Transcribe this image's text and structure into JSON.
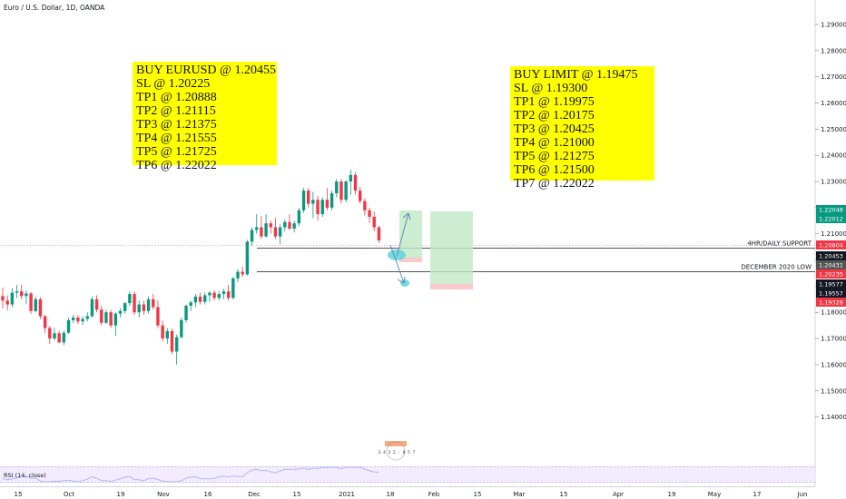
{
  "chart_data": {
    "type": "candlestick",
    "title": "Euro / U.S. Dollar, 1D, OANDA",
    "y_ticks": [
      "1.29000",
      "1.28000",
      "1.27000",
      "1.26000",
      "1.25000",
      "1.24000",
      "1.23000",
      "1.22000",
      "1.21000",
      "1.20000",
      "1.19000",
      "1.18000",
      "1.17000",
      "1.16000",
      "1.15000",
      "1.14000"
    ],
    "ylim": [
      1.1305,
      1.2945
    ],
    "x_ticks": [
      "15",
      "Oct",
      "19",
      "Nov",
      "16",
      "Dec",
      "15",
      "2021",
      "18",
      "Feb",
      "15",
      "Mar",
      "15",
      "Apr",
      "19",
      "May",
      "17",
      "Jun"
    ],
    "price_labels": [
      {
        "value": "1.22048",
        "color": "#089981"
      },
      {
        "value": "1.22012",
        "color": "#089981"
      },
      {
        "value": "1.20804",
        "color": "#f23645"
      },
      {
        "value": "1.20453",
        "color": "#131722"
      },
      {
        "value": "1.20431",
        "color": "#555555"
      },
      {
        "value": "1.20235",
        "color": "#f23645"
      },
      {
        "value": "1.19577",
        "color": "#131722"
      },
      {
        "value": "1.19557",
        "color": "#131722"
      },
      {
        "value": "1.19328",
        "color": "#f23645"
      }
    ],
    "level_lines": [
      {
        "label": "4HR/DAILY SUPPORT",
        "price": 1.20453
      },
      {
        "label": "DECEMBER 2020 LOW",
        "price": 1.19577
      }
    ],
    "candles": [
      {
        "o": 1.1862,
        "h": 1.1895,
        "l": 1.1815,
        "c": 1.1845
      },
      {
        "o": 1.1845,
        "h": 1.1865,
        "l": 1.1808,
        "c": 1.183
      },
      {
        "o": 1.183,
        "h": 1.1893,
        "l": 1.182,
        "c": 1.1875
      },
      {
        "o": 1.1875,
        "h": 1.1905,
        "l": 1.1855,
        "c": 1.188
      },
      {
        "o": 1.188,
        "h": 1.1905,
        "l": 1.185,
        "c": 1.1862
      },
      {
        "o": 1.1862,
        "h": 1.1883,
        "l": 1.1832,
        "c": 1.1872
      },
      {
        "o": 1.1872,
        "h": 1.1878,
        "l": 1.1795,
        "c": 1.1805
      },
      {
        "o": 1.1805,
        "h": 1.186,
        "l": 1.18,
        "c": 1.185
      },
      {
        "o": 1.185,
        "h": 1.1857,
        "l": 1.1775,
        "c": 1.1785
      },
      {
        "o": 1.1785,
        "h": 1.179,
        "l": 1.172,
        "c": 1.174
      },
      {
        "o": 1.174,
        "h": 1.1748,
        "l": 1.168,
        "c": 1.17
      },
      {
        "o": 1.17,
        "h": 1.174,
        "l": 1.1693,
        "c": 1.172
      },
      {
        "o": 1.172,
        "h": 1.173,
        "l": 1.1682,
        "c": 1.1685
      },
      {
        "o": 1.1685,
        "h": 1.173,
        "l": 1.1675,
        "c": 1.1722
      },
      {
        "o": 1.1722,
        "h": 1.178,
        "l": 1.1718,
        "c": 1.177
      },
      {
        "o": 1.177,
        "h": 1.179,
        "l": 1.176,
        "c": 1.178
      },
      {
        "o": 1.178,
        "h": 1.179,
        "l": 1.1755,
        "c": 1.1765
      },
      {
        "o": 1.1765,
        "h": 1.1785,
        "l": 1.175,
        "c": 1.1775
      },
      {
        "o": 1.1775,
        "h": 1.18,
        "l": 1.1765,
        "c": 1.1785
      },
      {
        "o": 1.1785,
        "h": 1.186,
        "l": 1.178,
        "c": 1.185
      },
      {
        "o": 1.185,
        "h": 1.1865,
        "l": 1.18,
        "c": 1.181
      },
      {
        "o": 1.181,
        "h": 1.1825,
        "l": 1.175,
        "c": 1.176
      },
      {
        "o": 1.176,
        "h": 1.181,
        "l": 1.1755,
        "c": 1.18
      },
      {
        "o": 1.18,
        "h": 1.181,
        "l": 1.174,
        "c": 1.175
      },
      {
        "o": 1.175,
        "h": 1.18,
        "l": 1.171,
        "c": 1.1795
      },
      {
        "o": 1.1795,
        "h": 1.1815,
        "l": 1.178,
        "c": 1.1805
      },
      {
        "o": 1.1805,
        "h": 1.184,
        "l": 1.1795,
        "c": 1.1835
      },
      {
        "o": 1.1835,
        "h": 1.188,
        "l": 1.1825,
        "c": 1.187
      },
      {
        "o": 1.187,
        "h": 1.188,
        "l": 1.179,
        "c": 1.18
      },
      {
        "o": 1.18,
        "h": 1.1845,
        "l": 1.178,
        "c": 1.183
      },
      {
        "o": 1.183,
        "h": 1.1845,
        "l": 1.179,
        "c": 1.1805
      },
      {
        "o": 1.1805,
        "h": 1.186,
        "l": 1.1795,
        "c": 1.185
      },
      {
        "o": 1.185,
        "h": 1.187,
        "l": 1.181,
        "c": 1.182
      },
      {
        "o": 1.182,
        "h": 1.1845,
        "l": 1.174,
        "c": 1.175
      },
      {
        "o": 1.175,
        "h": 1.1768,
        "l": 1.1688,
        "c": 1.17
      },
      {
        "o": 1.17,
        "h": 1.174,
        "l": 1.168,
        "c": 1.1728
      },
      {
        "o": 1.1728,
        "h": 1.1738,
        "l": 1.164,
        "c": 1.165
      },
      {
        "o": 1.165,
        "h": 1.1715,
        "l": 1.16,
        "c": 1.1705
      },
      {
        "o": 1.1705,
        "h": 1.178,
        "l": 1.17,
        "c": 1.177
      },
      {
        "o": 1.177,
        "h": 1.183,
        "l": 1.176,
        "c": 1.1825
      },
      {
        "o": 1.1825,
        "h": 1.1845,
        "l": 1.1805,
        "c": 1.1838
      },
      {
        "o": 1.1838,
        "h": 1.187,
        "l": 1.182,
        "c": 1.186
      },
      {
        "o": 1.186,
        "h": 1.1875,
        "l": 1.183,
        "c": 1.184
      },
      {
        "o": 1.184,
        "h": 1.1875,
        "l": 1.183,
        "c": 1.1865
      },
      {
        "o": 1.1865,
        "h": 1.188,
        "l": 1.184,
        "c": 1.1875
      },
      {
        "o": 1.1875,
        "h": 1.1885,
        "l": 1.1845,
        "c": 1.1855
      },
      {
        "o": 1.1855,
        "h": 1.188,
        "l": 1.1845,
        "c": 1.187
      },
      {
        "o": 1.187,
        "h": 1.189,
        "l": 1.185,
        "c": 1.188
      },
      {
        "o": 1.188,
        "h": 1.1905,
        "l": 1.1845,
        "c": 1.1855
      },
      {
        "o": 1.1855,
        "h": 1.1935,
        "l": 1.185,
        "c": 1.193
      },
      {
        "o": 1.193,
        "h": 1.1965,
        "l": 1.1915,
        "c": 1.1955
      },
      {
        "o": 1.1955,
        "h": 1.1975,
        "l": 1.1935,
        "c": 1.1945
      },
      {
        "o": 1.1945,
        "h": 1.2077,
        "l": 1.194,
        "c": 1.207
      },
      {
        "o": 1.207,
        "h": 1.2125,
        "l": 1.2055,
        "c": 1.2115
      },
      {
        "o": 1.2115,
        "h": 1.2175,
        "l": 1.21,
        "c": 1.2125
      },
      {
        "o": 1.2125,
        "h": 1.2168,
        "l": 1.208,
        "c": 1.209
      },
      {
        "o": 1.209,
        "h": 1.2175,
        "l": 1.2085,
        "c": 1.214
      },
      {
        "o": 1.214,
        "h": 1.215,
        "l": 1.21,
        "c": 1.2125
      },
      {
        "o": 1.2125,
        "h": 1.216,
        "l": 1.208,
        "c": 1.209
      },
      {
        "o": 1.209,
        "h": 1.2135,
        "l": 1.206,
        "c": 1.2125
      },
      {
        "o": 1.2125,
        "h": 1.2155,
        "l": 1.211,
        "c": 1.2145
      },
      {
        "o": 1.2145,
        "h": 1.2175,
        "l": 1.2115,
        "c": 1.212
      },
      {
        "o": 1.212,
        "h": 1.215,
        "l": 1.2105,
        "c": 1.214
      },
      {
        "o": 1.214,
        "h": 1.22,
        "l": 1.213,
        "c": 1.219
      },
      {
        "o": 1.219,
        "h": 1.2275,
        "l": 1.218,
        "c": 1.2265
      },
      {
        "o": 1.2265,
        "h": 1.2275,
        "l": 1.22,
        "c": 1.2215
      },
      {
        "o": 1.2215,
        "h": 1.226,
        "l": 1.216,
        "c": 1.223
      },
      {
        "o": 1.223,
        "h": 1.2245,
        "l": 1.215,
        "c": 1.2175
      },
      {
        "o": 1.2175,
        "h": 1.224,
        "l": 1.2165,
        "c": 1.223
      },
      {
        "o": 1.223,
        "h": 1.2275,
        "l": 1.219,
        "c": 1.22
      },
      {
        "o": 1.22,
        "h": 1.2265,
        "l": 1.219,
        "c": 1.2255
      },
      {
        "o": 1.2255,
        "h": 1.231,
        "l": 1.224,
        "c": 1.23
      },
      {
        "o": 1.23,
        "h": 1.231,
        "l": 1.2215,
        "c": 1.223
      },
      {
        "o": 1.223,
        "h": 1.2305,
        "l": 1.222,
        "c": 1.23
      },
      {
        "o": 1.23,
        "h": 1.2345,
        "l": 1.225,
        "c": 1.2325
      },
      {
        "o": 1.2325,
        "h": 1.2335,
        "l": 1.225,
        "c": 1.2265
      },
      {
        "o": 1.2265,
        "h": 1.228,
        "l": 1.2215,
        "c": 1.2225
      },
      {
        "o": 1.2225,
        "h": 1.2235,
        "l": 1.217,
        "c": 1.219
      },
      {
        "o": 1.219,
        "h": 1.22,
        "l": 1.214,
        "c": 1.2165
      },
      {
        "o": 1.2165,
        "h": 1.2185,
        "l": 1.211,
        "c": 1.2125
      },
      {
        "o": 1.2125,
        "h": 1.213,
        "l": 1.2065,
        "c": 1.2075
      }
    ],
    "rsi_label": "RSI (14, close)"
  },
  "annotations": {
    "left_note": [
      "BUY EURUSD @ 1.20455",
      "SL @ 1.20225",
      "TP1 @ 1.20888",
      "TP2 @ 1.21115",
      "TP3 @ 1.21375",
      "TP4 @ 1.21555",
      "TP5 @ 1.21725",
      "TP6 @ 1.22022"
    ],
    "right_note": [
      "BUY LIMIT @ 1.19475",
      "SL @ 1.19300",
      "TP1 @ 1.19975",
      "TP2 @ 1.20175",
      "TP3 @ 1.20425",
      "TP4 @ 1.21000",
      "TP5 @ 1.21275",
      "TP6 @ 1.21500",
      "TP7 @ 1.22022"
    ]
  },
  "logo": {
    "text": "3 4 3 2 · 8 5 7"
  }
}
